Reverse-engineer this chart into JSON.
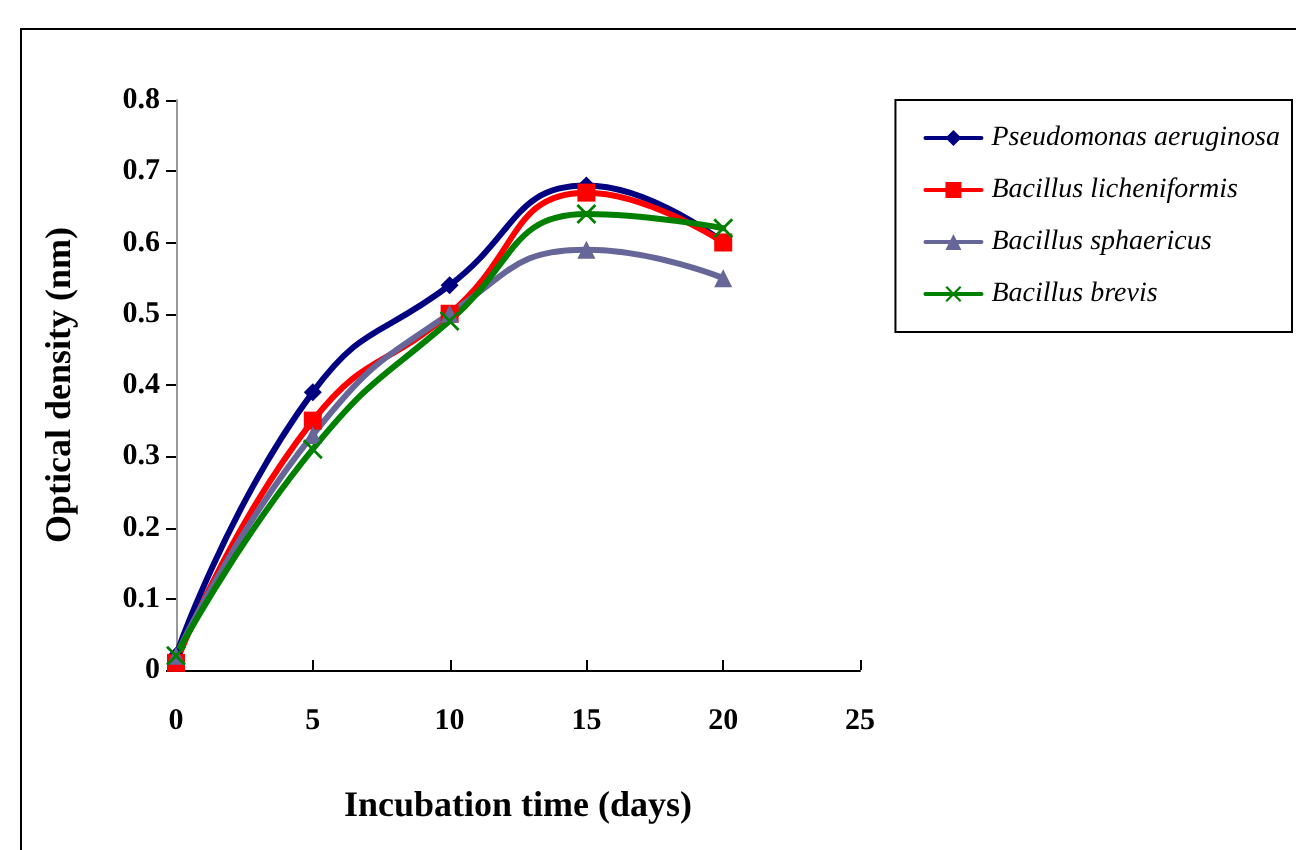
{
  "chart_data": {
    "type": "line",
    "xlabel": "Incubation time (days)",
    "ylabel": "Optical density (nm)",
    "x": [
      0,
      5,
      10,
      15,
      20
    ],
    "series": [
      {
        "name": "Pseudomonas aeruginosa",
        "color": "#000080",
        "marker": "diamond",
        "values": [
          0.02,
          0.39,
          0.54,
          0.68,
          0.6
        ]
      },
      {
        "name": "Bacillus licheniformis",
        "color": "#ff0000",
        "marker": "square",
        "values": [
          0.01,
          0.35,
          0.5,
          0.67,
          0.6
        ]
      },
      {
        "name": "Bacillus sphaericus",
        "color": "#666699",
        "marker": "triangle",
        "values": [
          0.02,
          0.33,
          0.5,
          0.59,
          0.55
        ]
      },
      {
        "name": "Bacillus brevis",
        "color": "#008000",
        "marker": "cross",
        "values": [
          0.02,
          0.31,
          0.49,
          0.64,
          0.62
        ]
      }
    ],
    "xlim": [
      0,
      25
    ],
    "xticks": [
      0,
      5,
      10,
      15,
      20,
      25
    ],
    "ylim": [
      0,
      0.8
    ],
    "yticks": [
      0,
      0.1,
      0.2,
      0.3,
      0.4,
      0.5,
      0.6,
      0.7,
      0.8
    ],
    "grid": false,
    "legend": "right",
    "line_style": "solid"
  }
}
